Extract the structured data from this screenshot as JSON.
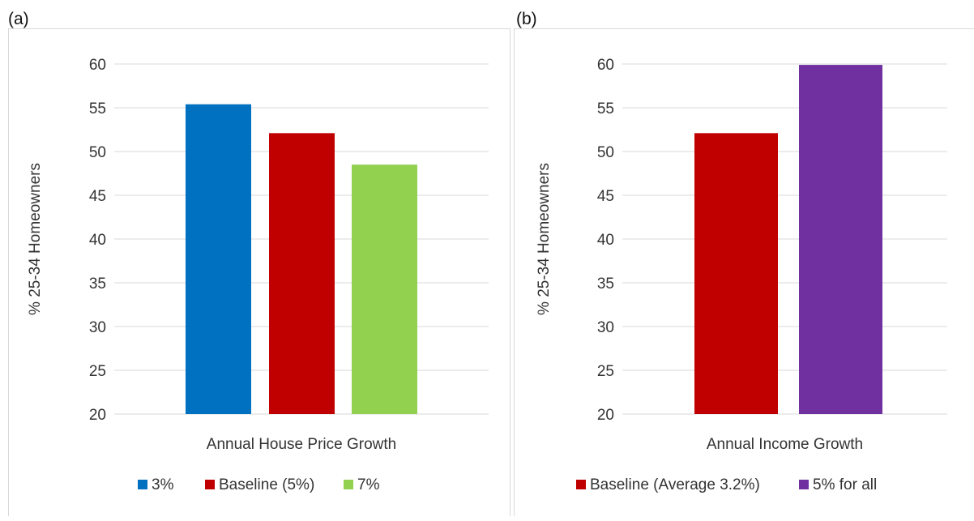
{
  "panels": [
    {
      "label": "(a)"
    },
    {
      "label": "(b)"
    }
  ],
  "chart_data": [
    {
      "type": "bar",
      "categories": [
        "Annual House Price Growth"
      ],
      "xlabel": "Annual House Price Growth",
      "ylabel": "% 25-34 Homeowners",
      "ylim": [
        20,
        60
      ],
      "yticks": [
        20,
        25,
        30,
        35,
        40,
        45,
        50,
        55,
        60
      ],
      "grid": true,
      "legend_position": "bottom",
      "series": [
        {
          "name": "3%",
          "values": [
            55.4
          ],
          "color": "#0070C0"
        },
        {
          "name": "Baseline (5%)",
          "values": [
            52.1
          ],
          "color": "#C00000"
        },
        {
          "name": "7%",
          "values": [
            48.5
          ],
          "color": "#92D050"
        }
      ]
    },
    {
      "type": "bar",
      "categories": [
        "Annual Income Growth"
      ],
      "xlabel": "Annual Income Growth",
      "ylabel": "% 25-34 Homeowners",
      "ylim": [
        20,
        60
      ],
      "yticks": [
        20,
        25,
        30,
        35,
        40,
        45,
        50,
        55,
        60
      ],
      "grid": true,
      "legend_position": "bottom",
      "series": [
        {
          "name": "Baseline (Average 3.2%)",
          "values": [
            52.1
          ],
          "color": "#C00000"
        },
        {
          "name": "5% for all",
          "values": [
            59.9
          ],
          "color": "#7030A0"
        }
      ]
    }
  ]
}
